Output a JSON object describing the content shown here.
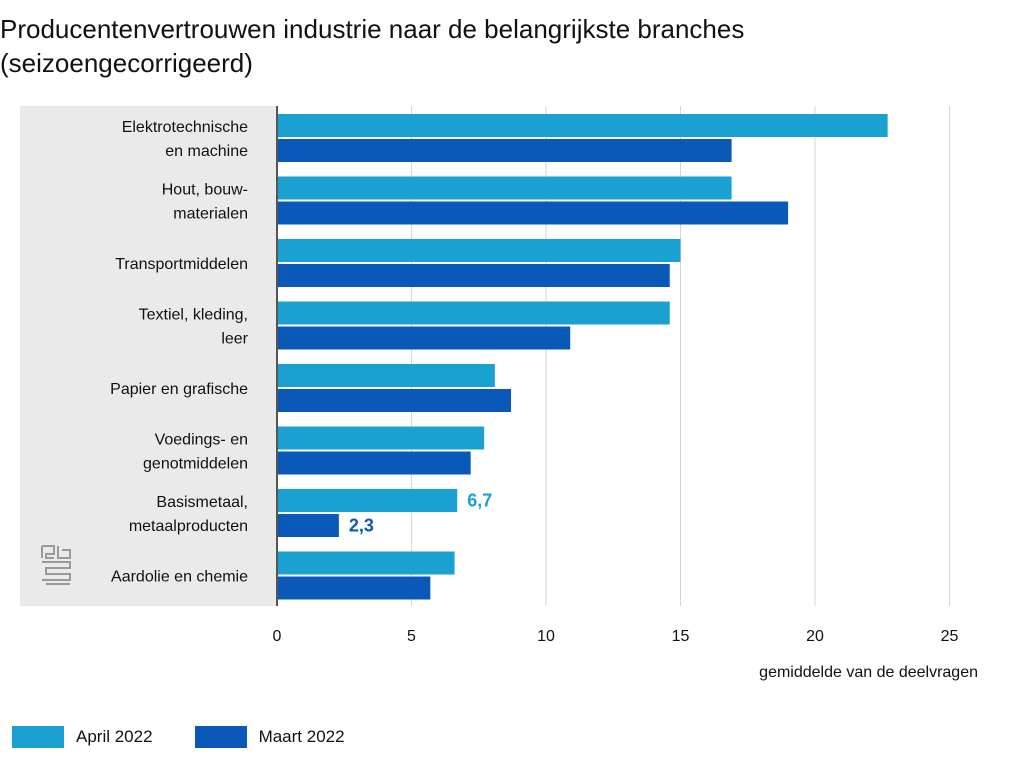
{
  "chart_data": {
    "type": "bar",
    "orientation": "horizontal",
    "title": "Producentenvertrouwen industrie naar de belangrijkste branches (seizoengecorrigeerd)",
    "xlabel": "gemiddelde van de deelvragen",
    "xlim": [
      0,
      25
    ],
    "xticks": [
      "0",
      "5",
      "10",
      "15",
      "20",
      "25"
    ],
    "grid": true,
    "legend_position": "bottom-left",
    "categories": [
      [
        "Elektrotechnische",
        "en machine"
      ],
      [
        "Hout, bouw-",
        "materialen"
      ],
      [
        "Transportmiddelen"
      ],
      [
        "Textiel, kleding,",
        "leer"
      ],
      [
        "Papier en grafische"
      ],
      [
        "Voedings- en",
        "genotmiddelen"
      ],
      [
        "Basismetaal,",
        "metaalproducten"
      ],
      [
        "Aardolie en chemie"
      ]
    ],
    "series": [
      {
        "name": "April 2022",
        "color": "#1aa1d1",
        "values": [
          22.7,
          16.9,
          15.0,
          14.6,
          8.1,
          7.7,
          6.7,
          6.6
        ],
        "data_labels": [
          "",
          "",
          "",
          "",
          "",
          "",
          "6,7",
          ""
        ]
      },
      {
        "name": "Maart 2022",
        "color": "#0a58b8",
        "values": [
          16.9,
          19.0,
          14.6,
          10.9,
          8.7,
          7.2,
          2.3,
          5.7
        ],
        "data_labels": [
          "",
          "",
          "",
          "",
          "",
          "",
          "2,3",
          ""
        ]
      }
    ],
    "logo": "cbs-logo-icon"
  }
}
